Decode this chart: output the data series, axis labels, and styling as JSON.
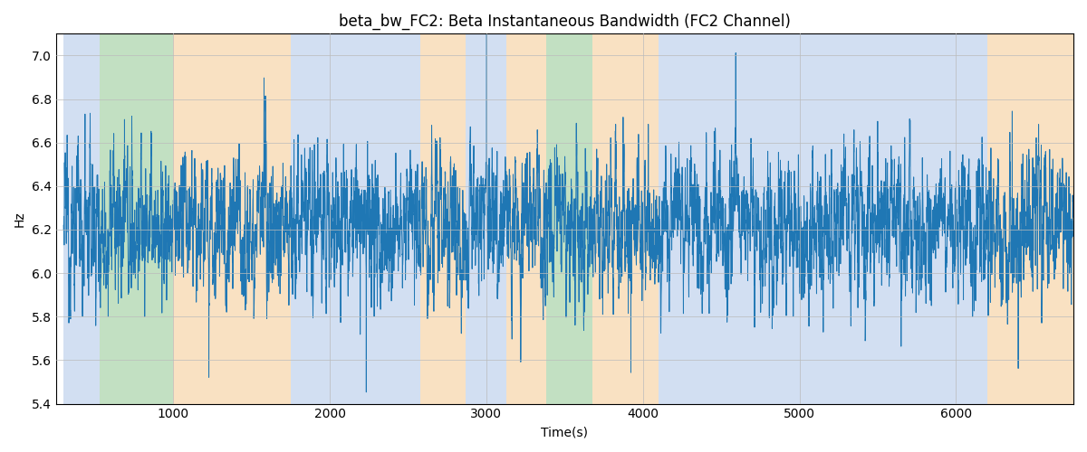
{
  "title": "beta_bw_FC2: Beta Instantaneous Bandwidth (FC2 Channel)",
  "xlabel": "Time(s)",
  "ylabel": "Hz",
  "xlim": [
    250,
    6750
  ],
  "ylim": [
    5.4,
    7.1
  ],
  "figsize": [
    12.0,
    5.0
  ],
  "dpi": 100,
  "line_color": "#1f77b4",
  "line_width": 0.7,
  "grid_color": "#bbbbbb",
  "bands": [
    {
      "xmin": 300,
      "xmax": 530,
      "color": "#aec6e8",
      "alpha": 0.55
    },
    {
      "xmin": 530,
      "xmax": 1000,
      "color": "#90c890",
      "alpha": 0.55
    },
    {
      "xmin": 1000,
      "xmax": 1750,
      "color": "#f5c990",
      "alpha": 0.55
    },
    {
      "xmin": 1750,
      "xmax": 2580,
      "color": "#aec6e8",
      "alpha": 0.55
    },
    {
      "xmin": 2580,
      "xmax": 2870,
      "color": "#f5c990",
      "alpha": 0.55
    },
    {
      "xmin": 2870,
      "xmax": 3130,
      "color": "#aec6e8",
      "alpha": 0.55
    },
    {
      "xmin": 3130,
      "xmax": 3380,
      "color": "#f5c990",
      "alpha": 0.55
    },
    {
      "xmin": 3380,
      "xmax": 3680,
      "color": "#90c890",
      "alpha": 0.55
    },
    {
      "xmin": 3680,
      "xmax": 4100,
      "color": "#f5c990",
      "alpha": 0.55
    },
    {
      "xmin": 4100,
      "xmax": 4680,
      "color": "#aec6e8",
      "alpha": 0.55
    },
    {
      "xmin": 4680,
      "xmax": 5750,
      "color": "#aec6e8",
      "alpha": 0.55
    },
    {
      "xmin": 5750,
      "xmax": 6200,
      "color": "#aec6e8",
      "alpha": 0.55
    },
    {
      "xmin": 6200,
      "xmax": 6750,
      "color": "#f5c990",
      "alpha": 0.55
    }
  ],
  "seed": 12345,
  "n_points": 6500,
  "x_start": 300,
  "x_end": 6750,
  "base_mean": 6.22,
  "noise_std": 0.12,
  "ar_alpha": 0.7,
  "spike_count": 80,
  "spike_std": 0.25
}
